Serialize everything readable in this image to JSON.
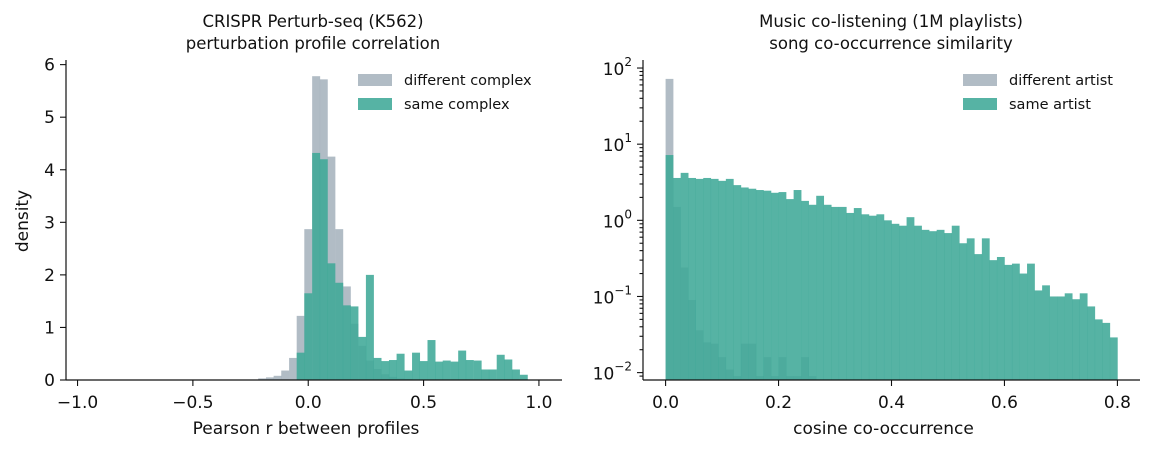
{
  "chart_data": [
    {
      "type": "histogram",
      "title": "CRISPR Perturb-seq (K562)",
      "subtitle": "perturbation profile correlation",
      "xlabel": "Pearson r between profiles",
      "ylabel": "density",
      "xlim": [
        -1.05,
        1.1
      ],
      "ylim": [
        0,
        6.05
      ],
      "yscale": "linear",
      "xticks": [
        -1.0,
        -0.5,
        0.0,
        0.5,
        1.0
      ],
      "xtick_labels": [
        "−1.0",
        "−0.5",
        "0.0",
        "0.5",
        "1.0"
      ],
      "yticks": [
        0,
        1,
        2,
        3,
        4,
        5,
        6
      ],
      "ytick_labels": [
        "0",
        "1",
        "2",
        "3",
        "4",
        "5",
        "6"
      ],
      "legend_position": "top-right",
      "bin_width": 0.0333,
      "series": [
        {
          "name": "different complex",
          "color": "#a3b0bb",
          "bins": [
            [
              -0.217,
              0.03
            ],
            [
              -0.183,
              0.05
            ],
            [
              -0.15,
              0.08
            ],
            [
              -0.117,
              0.18
            ],
            [
              -0.083,
              0.42
            ],
            [
              -0.05,
              1.22
            ],
            [
              -0.017,
              2.87
            ],
            [
              0.017,
              5.78
            ],
            [
              0.05,
              5.72
            ],
            [
              0.083,
              4.25
            ],
            [
              0.117,
              2.87
            ],
            [
              0.15,
              1.78
            ],
            [
              0.183,
              1.07
            ],
            [
              0.217,
              0.65
            ],
            [
              0.25,
              0.37
            ],
            [
              0.283,
              0.21
            ],
            [
              0.317,
              0.11
            ],
            [
              0.35,
              0.06
            ],
            [
              0.383,
              0.03
            ],
            [
              0.417,
              0.02
            ]
          ]
        },
        {
          "name": "same complex",
          "color": "#3fa897",
          "bins": [
            [
              -0.05,
              0.52
            ],
            [
              -0.017,
              1.65
            ],
            [
              0.017,
              4.32
            ],
            [
              0.05,
              4.2
            ],
            [
              0.083,
              2.22
            ],
            [
              0.117,
              1.85
            ],
            [
              0.15,
              1.42
            ],
            [
              0.183,
              1.4
            ],
            [
              0.217,
              0.82
            ],
            [
              0.25,
              2.0
            ],
            [
              0.283,
              0.42
            ],
            [
              0.317,
              0.36
            ],
            [
              0.35,
              0.38
            ],
            [
              0.383,
              0.5
            ],
            [
              0.417,
              0.18
            ],
            [
              0.45,
              0.52
            ],
            [
              0.483,
              0.36
            ],
            [
              0.517,
              0.76
            ],
            [
              0.55,
              0.35
            ],
            [
              0.583,
              0.37
            ],
            [
              0.617,
              0.35
            ],
            [
              0.65,
              0.56
            ],
            [
              0.683,
              0.38
            ],
            [
              0.717,
              0.37
            ],
            [
              0.75,
              0.2
            ],
            [
              0.783,
              0.2
            ],
            [
              0.817,
              0.48
            ],
            [
              0.85,
              0.39
            ],
            [
              0.883,
              0.2
            ],
            [
              0.917,
              0.1
            ]
          ]
        }
      ]
    },
    {
      "type": "histogram",
      "title": "Music co-listening (1M playlists)",
      "subtitle": "song co-occurrence similarity",
      "xlabel": "cosine co-occurrence",
      "ylabel": "",
      "xlim": [
        -0.04,
        0.84
      ],
      "ylim": [
        0.008,
        120
      ],
      "yscale": "log",
      "xticks": [
        0.0,
        0.2,
        0.4,
        0.6,
        0.8
      ],
      "xtick_labels": [
        "0.0",
        "0.2",
        "0.4",
        "0.6",
        "0.8"
      ],
      "yticks": [
        0.01,
        0.1,
        1,
        10,
        100
      ],
      "ytick_labels": [
        {
          "base": "10",
          "exp": "−2"
        },
        {
          "base": "10",
          "exp": "−1"
        },
        {
          "base": "10",
          "exp": "0"
        },
        {
          "base": "10",
          "exp": "1"
        },
        {
          "base": "10",
          "exp": "2"
        }
      ],
      "legend_position": "top-right",
      "bin_width": 0.0133,
      "series": [
        {
          "name": "different artist",
          "color": "#a3b0bb",
          "bins": [
            [
              0.0,
              72
            ],
            [
              0.0133,
              1.5
            ],
            [
              0.0267,
              0.24
            ],
            [
              0.04,
              0.09
            ],
            [
              0.0533,
              0.036
            ],
            [
              0.0667,
              0.025
            ],
            [
              0.08,
              0.024
            ],
            [
              0.0933,
              0.016
            ],
            [
              0.1067,
              0.011
            ],
            [
              0.12,
              0.009
            ],
            [
              0.1333,
              0.024
            ],
            [
              0.1467,
              0.024
            ],
            [
              0.16,
              0.009
            ],
            [
              0.1733,
              0.016
            ],
            [
              0.1867,
              0.009
            ],
            [
              0.2,
              0.016
            ],
            [
              0.2133,
              0.009
            ],
            [
              0.2267,
              0.009
            ],
            [
              0.24,
              0.016
            ],
            [
              0.2533,
              0.009
            ]
          ]
        },
        {
          "name": "same artist",
          "color": "#3fa897",
          "bins": [
            [
              0.0,
              7.2
            ],
            [
              0.0133,
              3.6
            ],
            [
              0.0267,
              4.2
            ],
            [
              0.04,
              3.6
            ],
            [
              0.0533,
              3.5
            ],
            [
              0.0667,
              3.6
            ],
            [
              0.08,
              3.5
            ],
            [
              0.0933,
              3.3
            ],
            [
              0.1067,
              3.5
            ],
            [
              0.12,
              2.9
            ],
            [
              0.1333,
              2.7
            ],
            [
              0.1467,
              2.6
            ],
            [
              0.16,
              2.5
            ],
            [
              0.1733,
              2.45
            ],
            [
              0.1867,
              2.3
            ],
            [
              0.2,
              2.35
            ],
            [
              0.2133,
              1.9
            ],
            [
              0.2267,
              2.5
            ],
            [
              0.24,
              1.8
            ],
            [
              0.2533,
              1.6
            ],
            [
              0.2667,
              2.1
            ],
            [
              0.28,
              1.6
            ],
            [
              0.2933,
              1.5
            ],
            [
              0.3067,
              1.5
            ],
            [
              0.32,
              1.25
            ],
            [
              0.3333,
              1.45
            ],
            [
              0.3467,
              1.2
            ],
            [
              0.36,
              1.15
            ],
            [
              0.3733,
              1.2
            ],
            [
              0.3867,
              1.0
            ],
            [
              0.4,
              0.9
            ],
            [
              0.4133,
              0.85
            ],
            [
              0.4267,
              1.1
            ],
            [
              0.44,
              0.85
            ],
            [
              0.4533,
              0.75
            ],
            [
              0.4667,
              0.72
            ],
            [
              0.48,
              0.75
            ],
            [
              0.4933,
              0.68
            ],
            [
              0.5067,
              0.85
            ],
            [
              0.52,
              0.5
            ],
            [
              0.5333,
              0.58
            ],
            [
              0.5467,
              0.36
            ],
            [
              0.56,
              0.58
            ],
            [
              0.5733,
              0.3
            ],
            [
              0.5867,
              0.33
            ],
            [
              0.6,
              0.26
            ],
            [
              0.6133,
              0.27
            ],
            [
              0.6267,
              0.2
            ],
            [
              0.64,
              0.27
            ],
            [
              0.6533,
              0.12
            ],
            [
              0.6667,
              0.14
            ],
            [
              0.68,
              0.1
            ],
            [
              0.6933,
              0.1
            ],
            [
              0.7067,
              0.11
            ],
            [
              0.72,
              0.092
            ],
            [
              0.7333,
              0.11
            ],
            [
              0.7467,
              0.074
            ],
            [
              0.76,
              0.05
            ],
            [
              0.7733,
              0.045
            ],
            [
              0.7867,
              0.029
            ]
          ]
        }
      ]
    }
  ]
}
